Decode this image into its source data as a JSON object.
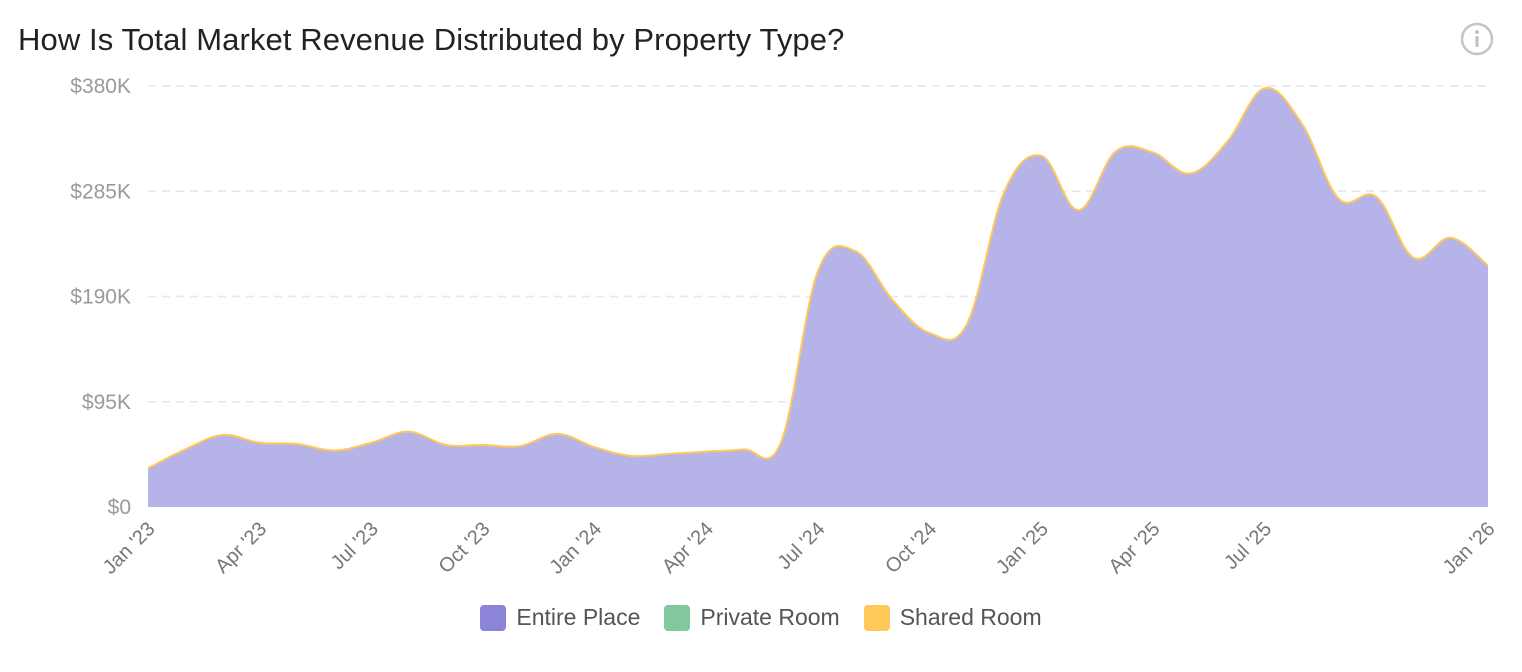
{
  "title": "How Is Total Market Revenue Distributed by Property Type?",
  "info_icon": "info-icon",
  "legend": [
    {
      "label": "Entire Place",
      "color": "#8b84d7"
    },
    {
      "label": "Private Room",
      "color": "#82c79e"
    },
    {
      "label": "Shared Room",
      "color": "#ffc857"
    }
  ],
  "chart_data": {
    "type": "area",
    "stacked": true,
    "grid": true,
    "legend_position": "bottom",
    "y_tick_labels": [
      "$0",
      "$95K",
      "$190K",
      "$285K",
      "$380K"
    ],
    "y_ticks": [
      0,
      95000,
      190000,
      285000,
      380000
    ],
    "ylim": [
      0,
      380000
    ],
    "x_tick_labels": [
      "Jan '23",
      "Apr '23",
      "Jul '23",
      "Oct '23",
      "Jan '24",
      "Apr '24",
      "Jul '24",
      "Oct '24",
      "Jan '25",
      "Apr '25",
      "Jul '25",
      "Jan '26"
    ],
    "x_tick_dates": [
      "2023-01",
      "2023-04",
      "2023-07",
      "2023-10",
      "2024-01",
      "2024-04",
      "2024-07",
      "2024-10",
      "2025-01",
      "2025-04",
      "2025-07",
      "2026-01"
    ],
    "x": [
      "2023-01",
      "2023-02",
      "2023-03",
      "2023-04",
      "2023-05",
      "2023-06",
      "2023-07",
      "2023-08",
      "2023-09",
      "2023-10",
      "2023-11",
      "2023-12",
      "2024-01",
      "2024-02",
      "2024-03",
      "2024-04",
      "2024-05",
      "2024-06",
      "2024-07",
      "2024-08",
      "2024-09",
      "2024-10",
      "2024-11",
      "2024-12",
      "2025-01",
      "2025-02",
      "2025-03",
      "2025-04",
      "2025-05",
      "2025-06",
      "2025-07",
      "2025-08",
      "2025-09",
      "2025-10",
      "2025-11",
      "2025-12",
      "2026-01"
    ],
    "series": [
      {
        "name": "Entire Place",
        "color": "#b6b3e8",
        "values": [
          35000,
          52000,
          65000,
          58000,
          57000,
          51000,
          58000,
          68000,
          56000,
          56000,
          55000,
          66000,
          54000,
          46000,
          48000,
          50000,
          52000,
          58000,
          213000,
          231000,
          187000,
          157000,
          165000,
          284000,
          317000,
          268000,
          321000,
          320000,
          301000,
          330000,
          378000,
          346000,
          278000,
          280000,
          225000,
          243000,
          218000
        ]
      },
      {
        "name": "Private Room",
        "color": "#82c79e",
        "values": [
          0,
          0,
          0,
          0,
          0,
          0,
          0,
          0,
          0,
          0,
          0,
          0,
          0,
          0,
          0,
          0,
          0,
          0,
          0,
          0,
          0,
          0,
          0,
          0,
          0,
          0,
          0,
          0,
          0,
          0,
          0,
          0,
          0,
          0,
          0,
          0,
          0
        ]
      },
      {
        "name": "Shared Room",
        "color": "#ffc857",
        "values": [
          0,
          0,
          0,
          0,
          0,
          0,
          0,
          0,
          0,
          0,
          0,
          0,
          0,
          0,
          0,
          0,
          0,
          0,
          0,
          0,
          0,
          0,
          0,
          0,
          0,
          0,
          0,
          0,
          0,
          0,
          0,
          0,
          0,
          0,
          0,
          0,
          0
        ]
      }
    ]
  }
}
